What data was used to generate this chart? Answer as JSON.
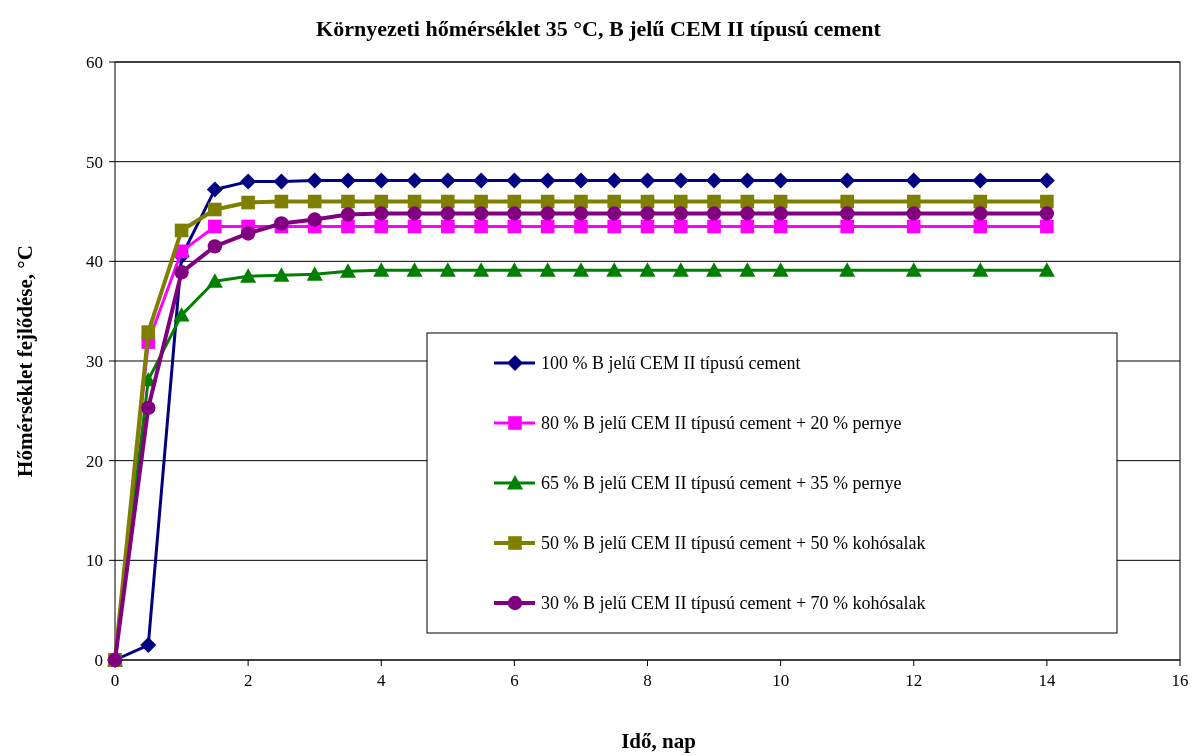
{
  "chart_data": {
    "type": "line",
    "title": "Környezeti hőmérséklet 35 °C, B jelű CEM II típusú cement",
    "xlabel": "Idő, nap",
    "ylabel": "Hőmérséklet fejlődése, °C",
    "x": [
      0,
      0.5,
      1,
      1.5,
      2,
      2.5,
      3,
      3.5,
      4,
      4.5,
      5,
      5.5,
      6,
      6.5,
      7,
      7.5,
      8,
      8.5,
      9,
      9.5,
      10,
      11,
      12,
      13,
      14
    ],
    "series": [
      {
        "name": "100 % B jelű CEM II típusú cement",
        "color": "#000080",
        "marker": "diamond",
        "values": [
          0,
          1.5,
          40.5,
          47.2,
          48.0,
          48.0,
          48.1,
          48.1,
          48.1,
          48.1,
          48.1,
          48.1,
          48.1,
          48.1,
          48.1,
          48.1,
          48.1,
          48.1,
          48.1,
          48.1,
          48.1,
          48.1,
          48.1,
          48.1,
          48.1
        ]
      },
      {
        "name": "80 % B jelű CEM II típusú cement + 20 % pernye",
        "color": "#ff00ff",
        "marker": "square",
        "values": [
          0,
          31.9,
          41.0,
          43.5,
          43.5,
          43.5,
          43.5,
          43.5,
          43.5,
          43.5,
          43.5,
          43.5,
          43.5,
          43.5,
          43.5,
          43.5,
          43.5,
          43.5,
          43.5,
          43.5,
          43.5,
          43.5,
          43.5,
          43.5,
          43.5
        ]
      },
      {
        "name": "65 % B jelű CEM II típusú cement + 35 % pernye",
        "color": "#008000",
        "marker": "triangle",
        "values": [
          0,
          28.1,
          34.6,
          38.0,
          38.5,
          38.6,
          38.7,
          39.0,
          39.1,
          39.1,
          39.1,
          39.1,
          39.1,
          39.1,
          39.1,
          39.1,
          39.1,
          39.1,
          39.1,
          39.1,
          39.1,
          39.1,
          39.1,
          39.1,
          39.1
        ]
      },
      {
        "name": "50 % B jelű CEM II típusú cement + 50 % kohósalak",
        "color": "#808000",
        "marker": "square",
        "values": [
          0,
          32.9,
          43.1,
          45.2,
          45.9,
          46.0,
          46.0,
          46.0,
          46.0,
          46.0,
          46.0,
          46.0,
          46.0,
          46.0,
          46.0,
          46.0,
          46.0,
          46.0,
          46.0,
          46.0,
          46.0,
          46.0,
          46.0,
          46.0,
          46.0
        ]
      },
      {
        "name": "30 % B jelű CEM II típusú cement + 70 % kohósalak",
        "color": "#800080",
        "marker": "circle",
        "values": [
          0,
          25.3,
          38.9,
          41.5,
          42.8,
          43.8,
          44.2,
          44.7,
          44.8,
          44.8,
          44.8,
          44.8,
          44.8,
          44.8,
          44.8,
          44.8,
          44.8,
          44.8,
          44.8,
          44.8,
          44.8,
          44.8,
          44.8,
          44.8,
          44.8
        ]
      }
    ],
    "xlim": [
      0,
      16
    ],
    "xticks": [
      0,
      2,
      4,
      6,
      8,
      10,
      12,
      14,
      16
    ],
    "ylim": [
      0,
      60
    ],
    "yticks": [
      0,
      10,
      20,
      30,
      40,
      50,
      60
    ],
    "grid": "y",
    "legend": "right"
  }
}
